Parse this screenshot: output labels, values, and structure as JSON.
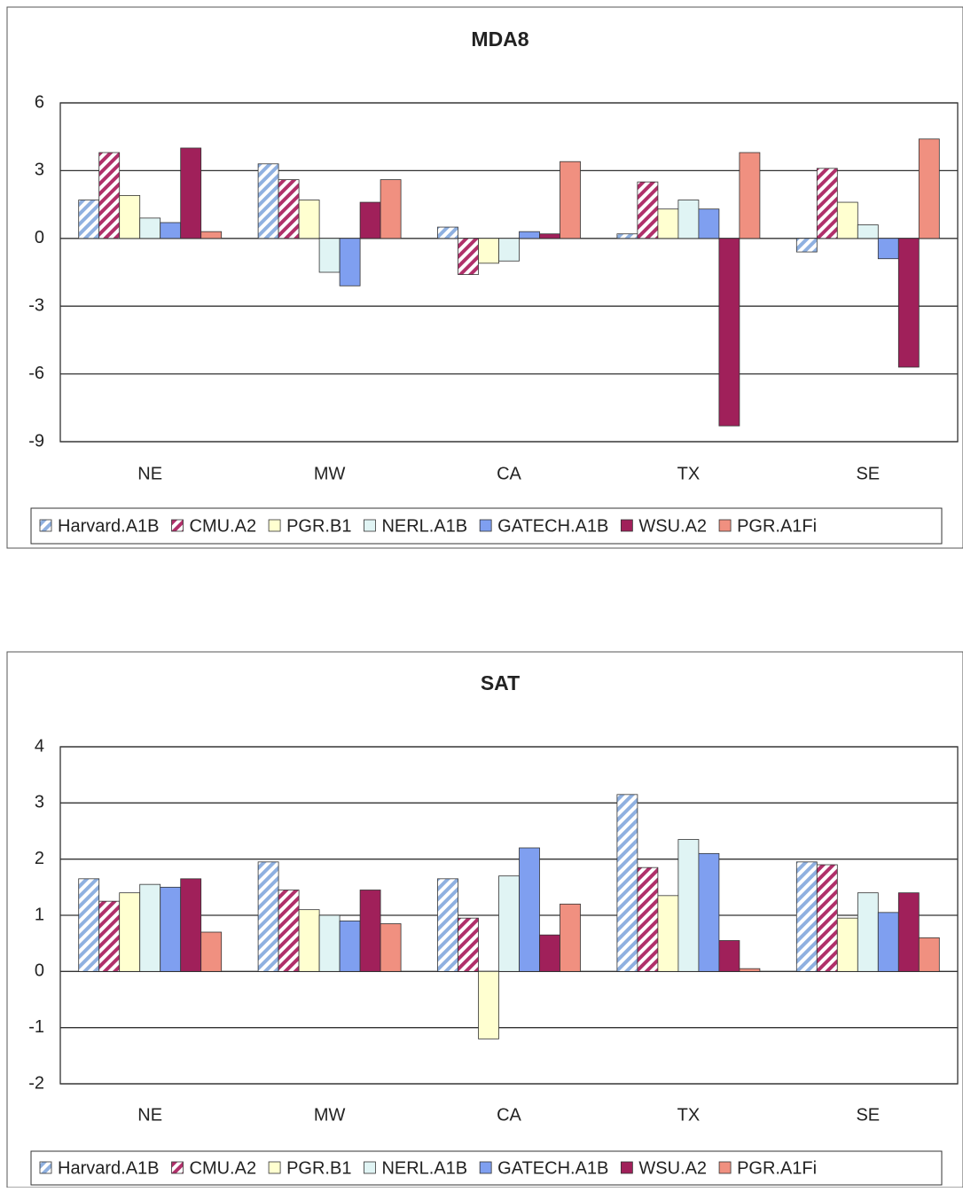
{
  "chart_data": [
    {
      "type": "bar",
      "title": "MDA8",
      "categories": [
        "NE",
        "MW",
        "CA",
        "TX",
        "SE"
      ],
      "series": [
        {
          "name": "Harvard.A1B",
          "color": "#8fb0e0",
          "hatch": true,
          "values": [
            1.7,
            3.3,
            0.5,
            0.2,
            -0.6
          ]
        },
        {
          "name": "CMU.A2",
          "color": "#b0306a",
          "hatch": true,
          "values": [
            3.8,
            2.6,
            -1.6,
            2.5,
            3.1
          ]
        },
        {
          "name": "PGR.B1",
          "color": "#ffffd0",
          "hatch": false,
          "values": [
            1.9,
            1.7,
            -1.1,
            1.3,
            1.6
          ]
        },
        {
          "name": "NERL.A1B",
          "color": "#e0f4f4",
          "hatch": false,
          "values": [
            0.9,
            -1.5,
            -1.0,
            1.7,
            0.6
          ]
        },
        {
          "name": "GATECH.A1B",
          "color": "#7f9ff0",
          "hatch": false,
          "values": [
            0.7,
            -2.1,
            0.3,
            1.3,
            -0.9
          ]
        },
        {
          "name": "WSU.A2",
          "color": "#a0205a",
          "hatch": false,
          "values": [
            4.0,
            1.6,
            0.2,
            -8.3,
            -5.7
          ]
        },
        {
          "name": "PGR.A1Fi",
          "color": "#f09080",
          "hatch": false,
          "values": [
            0.3,
            2.6,
            3.4,
            3.8,
            4.4
          ]
        }
      ],
      "ylim": [
        -9,
        6
      ],
      "yticks": [
        -9,
        -6,
        -3,
        0,
        3,
        6
      ],
      "grid": true,
      "legend": "bottom"
    },
    {
      "type": "bar",
      "title": "SAT",
      "categories": [
        "NE",
        "MW",
        "CA",
        "TX",
        "SE"
      ],
      "series": [
        {
          "name": "Harvard.A1B",
          "color": "#8fb0e0",
          "hatch": true,
          "values": [
            1.65,
            1.95,
            1.65,
            3.15,
            1.95
          ]
        },
        {
          "name": "CMU.A2",
          "color": "#b0306a",
          "hatch": true,
          "values": [
            1.25,
            1.45,
            0.95,
            1.85,
            1.9
          ]
        },
        {
          "name": "PGR.B1",
          "color": "#ffffd0",
          "hatch": false,
          "values": [
            1.4,
            1.1,
            -1.2,
            1.35,
            0.95
          ]
        },
        {
          "name": "NERL.A1B",
          "color": "#e0f4f4",
          "hatch": false,
          "values": [
            1.55,
            1.0,
            1.7,
            2.35,
            1.4
          ]
        },
        {
          "name": "GATECH.A1B",
          "color": "#7f9ff0",
          "hatch": false,
          "values": [
            1.5,
            0.9,
            2.2,
            2.1,
            1.05
          ]
        },
        {
          "name": "WSU.A2",
          "color": "#a0205a",
          "hatch": false,
          "values": [
            1.65,
            1.45,
            0.65,
            0.55,
            1.4
          ]
        },
        {
          "name": "PGR.A1Fi",
          "color": "#f09080",
          "hatch": false,
          "values": [
            0.7,
            0.85,
            1.2,
            0.05,
            0.6
          ]
        }
      ],
      "ylim": [
        -2,
        4
      ],
      "yticks": [
        -2,
        -1,
        0,
        1,
        2,
        3,
        4
      ],
      "grid": true,
      "legend": "bottom"
    }
  ]
}
